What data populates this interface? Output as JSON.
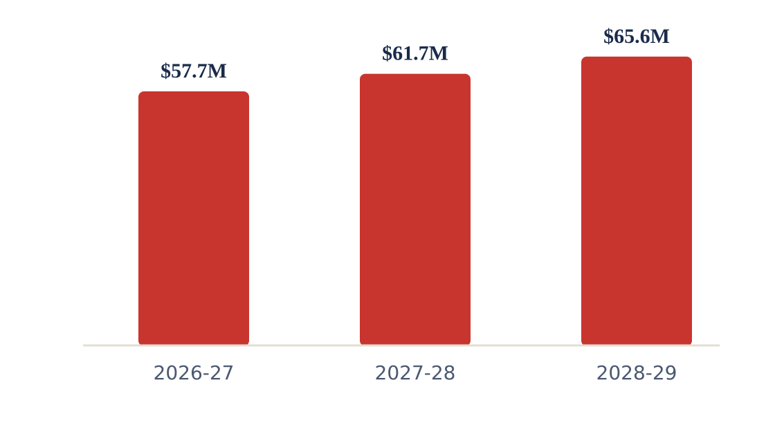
{
  "chart_data": {
    "type": "bar",
    "categories": [
      "2026-27",
      "2027-28",
      "2028-29"
    ],
    "values": [
      57.7,
      61.7,
      65.6
    ],
    "value_labels": [
      "$57.7M",
      "$61.7M",
      "$65.6M"
    ],
    "title": "",
    "xlabel": "",
    "ylabel": "",
    "ylim": [
      0,
      70
    ],
    "grid": false,
    "legend": "none"
  },
  "colors": {
    "bar": "#c8352e",
    "value_label": "#1a2b4a",
    "tick_label": "#4a5870",
    "baseline": "#e3ddd3"
  }
}
